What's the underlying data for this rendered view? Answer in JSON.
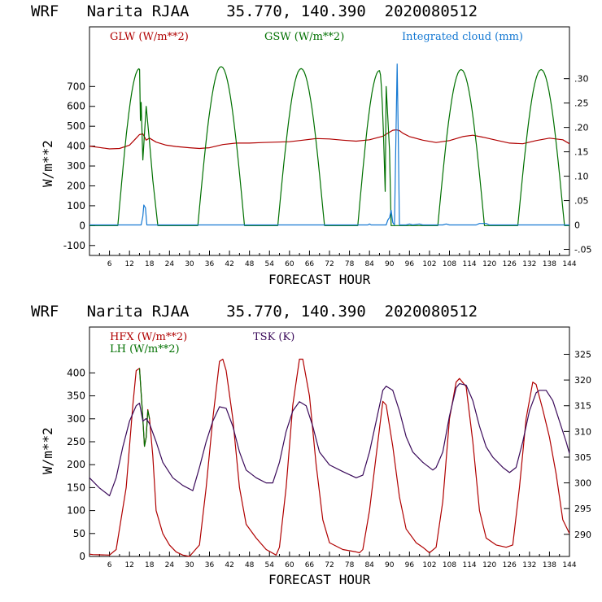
{
  "chart_data": [
    {
      "type": "line",
      "title": "WRF   Narita RJAA    35.770, 140.390  2020080512",
      "xlabel": "FORECAST HOUR",
      "ylabel": "W/m**2",
      "xlim": [
        0,
        144
      ],
      "ylim": [
        -150,
        1000
      ],
      "ylim_right": [
        -0.0625,
        0.40625
      ],
      "x_ticks": [
        6,
        12,
        18,
        24,
        30,
        36,
        42,
        48,
        54,
        60,
        66,
        72,
        78,
        84,
        90,
        96,
        102,
        108,
        114,
        120,
        126,
        132,
        138,
        144
      ],
      "y_ticks": [
        -100,
        0,
        100,
        200,
        300,
        400,
        500,
        600,
        700
      ],
      "y_ticks_right": [
        -0.05,
        0,
        0.05,
        0.1,
        0.15,
        0.2,
        0.25,
        0.3
      ],
      "y_tick_labels_right": [
        "-.05",
        "0",
        ".05",
        ".10",
        ".15",
        ".20",
        ".25",
        ".30"
      ],
      "series": [
        {
          "name": "GLW (W/m**2)",
          "color": "#b00000",
          "axis": "left",
          "points": [
            [
              0,
              400
            ],
            [
              3,
              393
            ],
            [
              6,
              386
            ],
            [
              9,
              388
            ],
            [
              12,
              405
            ],
            [
              14,
              440
            ],
            [
              15,
              458
            ],
            [
              16,
              462
            ],
            [
              17,
              430
            ],
            [
              18,
              440
            ],
            [
              20,
              420
            ],
            [
              23,
              405
            ],
            [
              26,
              398
            ],
            [
              30,
              392
            ],
            [
              33,
              388
            ],
            [
              36,
              392
            ],
            [
              40,
              408
            ],
            [
              44,
              415
            ],
            [
              48,
              415
            ],
            [
              52,
              418
            ],
            [
              56,
              420
            ],
            [
              60,
              422
            ],
            [
              64,
              430
            ],
            [
              68,
              438
            ],
            [
              72,
              436
            ],
            [
              76,
              430
            ],
            [
              80,
              425
            ],
            [
              84,
              432
            ],
            [
              88,
              450
            ],
            [
              90,
              470
            ],
            [
              91,
              480
            ],
            [
              92,
              482
            ],
            [
              93,
              478
            ],
            [
              94,
              465
            ],
            [
              96,
              448
            ],
            [
              100,
              430
            ],
            [
              104,
              418
            ],
            [
              108,
              428
            ],
            [
              112,
              448
            ],
            [
              115,
              455
            ],
            [
              118,
              445
            ],
            [
              122,
              430
            ],
            [
              126,
              415
            ],
            [
              130,
              412
            ],
            [
              134,
              428
            ],
            [
              138,
              440
            ],
            [
              142,
              432
            ],
            [
              144,
              412
            ]
          ]
        },
        {
          "name": "GSW (W/m**2)",
          "color": "#007000",
          "axis": "left",
          "peaks": [
            {
              "start": 8.5,
              "end": 15.5,
              "peak_hour": 15,
              "peak": 790,
              "after": [
                [
                  15.5,
                  620
                ],
                [
                  16,
                  330
                ],
                [
                  17,
                  600
                ],
                [
                  18,
                  420
                ],
                [
                  19,
                  230
                ],
                [
                  20.5,
                  0
                ]
              ]
            },
            {
              "start": 32.5,
              "end": 46.5,
              "peak_hour": 39.5,
              "peak": 800
            },
            {
              "start": 56.5,
              "end": 70.5,
              "peak_hour": 63.5,
              "peak": 790
            },
            {
              "start": 80.5,
              "end": 89,
              "peak_hour": 87,
              "peak": 780,
              "after": [
                [
                  89,
                  700
                ],
                [
                  90,
                  380
                ],
                [
                  90.5,
                  0
                ]
              ]
            },
            {
              "start": 104.5,
              "end": 118.5,
              "peak_hour": 111.5,
              "peak": 785
            },
            {
              "start": 128.5,
              "end": 142.5,
              "peak_hour": 135.5,
              "peak": 785
            }
          ]
        },
        {
          "name": "Integrated cloud (mm)",
          "color": "#1478d2",
          "axis": "right",
          "points": [
            [
              0,
              0
            ],
            [
              15.5,
              0
            ],
            [
              16,
              0.018
            ],
            [
              16.3,
              0.041
            ],
            [
              16.8,
              0.035
            ],
            [
              17.2,
              0
            ],
            [
              83.5,
              0
            ],
            [
              84,
              0.002
            ],
            [
              84.5,
              0
            ],
            [
              89,
              0
            ],
            [
              89.5,
              0.01
            ],
            [
              90,
              0.015
            ],
            [
              90.5,
              0.03
            ],
            [
              91,
              0.005
            ],
            [
              91.5,
              0
            ],
            [
              92,
              0.2
            ],
            [
              92.3,
              0.33
            ],
            [
              92.6,
              0.2
            ],
            [
              93,
              0
            ],
            [
              95,
              0
            ],
            [
              96,
              0.002
            ],
            [
              97,
              0
            ],
            [
              99,
              0.002
            ],
            [
              100,
              0
            ],
            [
              106,
              0
            ],
            [
              107,
              0.002
            ],
            [
              108,
              0
            ],
            [
              116,
              0
            ],
            [
              117,
              0.003
            ],
            [
              119,
              0.003
            ],
            [
              120,
              0
            ],
            [
              144,
              0
            ]
          ]
        }
      ]
    },
    {
      "type": "line",
      "title": "WRF   Narita RJAA    35.770, 140.390  2020080512",
      "xlabel": "FORECAST HOUR",
      "ylabel": "W/m**2",
      "xlim": [
        0,
        144
      ],
      "ylim": [
        0,
        500
      ],
      "ylim_right": [
        285.7,
        330.3
      ],
      "x_ticks": [
        6,
        12,
        18,
        24,
        30,
        36,
        42,
        48,
        54,
        60,
        66,
        72,
        78,
        84,
        90,
        96,
        102,
        108,
        114,
        120,
        126,
        132,
        138,
        144
      ],
      "y_ticks": [
        0,
        50,
        100,
        150,
        200,
        250,
        300,
        350,
        400
      ],
      "y_ticks_right": [
        290,
        295,
        300,
        305,
        310,
        315,
        320,
        325
      ],
      "series": [
        {
          "name": "HFX (W/m**2)",
          "color": "#b00000",
          "axis": "left",
          "points": [
            [
              0,
              5
            ],
            [
              1,
              4
            ],
            [
              6,
              3
            ],
            [
              8,
              15
            ],
            [
              11,
              150
            ],
            [
              13,
              330
            ],
            [
              14,
              405
            ],
            [
              15,
              410
            ],
            [
              16,
              300
            ],
            [
              16.5,
              240
            ],
            [
              17,
              260
            ],
            [
              17.5,
              320
            ],
            [
              18,
              300
            ],
            [
              19,
              220
            ],
            [
              20,
              100
            ],
            [
              22,
              50
            ],
            [
              24,
              25
            ],
            [
              26,
              10
            ],
            [
              28,
              3
            ],
            [
              30,
              0
            ],
            [
              33,
              25
            ],
            [
              35,
              150
            ],
            [
              37,
              300
            ],
            [
              39,
              425
            ],
            [
              40,
              430
            ],
            [
              41,
              405
            ],
            [
              43,
              300
            ],
            [
              45,
              150
            ],
            [
              47,
              70
            ],
            [
              50,
              40
            ],
            [
              53,
              15
            ],
            [
              56,
              3
            ],
            [
              57,
              20
            ],
            [
              59,
              150
            ],
            [
              61,
              330
            ],
            [
              63,
              430
            ],
            [
              64,
              430
            ],
            [
              66,
              350
            ],
            [
              68,
              200
            ],
            [
              70,
              80
            ],
            [
              72,
              30
            ],
            [
              76,
              15
            ],
            [
              80,
              10
            ],
            [
              81,
              8
            ],
            [
              82,
              15
            ],
            [
              84,
              100
            ],
            [
              86,
              220
            ],
            [
              88,
              338
            ],
            [
              89,
              330
            ],
            [
              91,
              240
            ],
            [
              93,
              130
            ],
            [
              95,
              60
            ],
            [
              98,
              30
            ],
            [
              100,
              20
            ],
            [
              102,
              8
            ],
            [
              104,
              20
            ],
            [
              106,
              120
            ],
            [
              108,
              300
            ],
            [
              110,
              380
            ],
            [
              111,
              388
            ],
            [
              113,
              370
            ],
            [
              115,
              250
            ],
            [
              117,
              100
            ],
            [
              119,
              40
            ],
            [
              122,
              25
            ],
            [
              125,
              20
            ],
            [
              127,
              25
            ],
            [
              129,
              150
            ],
            [
              131,
              300
            ],
            [
              133,
              380
            ],
            [
              134,
              375
            ],
            [
              136,
              320
            ],
            [
              138,
              260
            ],
            [
              140,
              180
            ],
            [
              142,
              80
            ],
            [
              144,
              50
            ]
          ]
        },
        {
          "name": "LH  (W/m**2)",
          "color": "#007000",
          "axis": "left",
          "points": [
            [
              15,
              410
            ],
            [
              16,
              300
            ],
            [
              16.5,
              240
            ],
            [
              17,
              260
            ],
            [
              17.5,
              318
            ],
            [
              18,
              300
            ]
          ]
        },
        {
          "name": "TSK (K)",
          "color": "#3a0a5a",
          "axis": "right",
          "points": [
            [
              0,
              301
            ],
            [
              3,
              299
            ],
            [
              6,
              297.5
            ],
            [
              8,
              301
            ],
            [
              10,
              307
            ],
            [
              12,
              312
            ],
            [
              14,
              315
            ],
            [
              15,
              315.5
            ],
            [
              16,
              312
            ],
            [
              17,
              312.5
            ],
            [
              18,
              311.5
            ],
            [
              20,
              308
            ],
            [
              22,
              304
            ],
            [
              25,
              301
            ],
            [
              28,
              299.5
            ],
            [
              31,
              298.5
            ],
            [
              33,
              303
            ],
            [
              35,
              308
            ],
            [
              37,
              312
            ],
            [
              39,
              314.8
            ],
            [
              41,
              314.5
            ],
            [
              43,
              311
            ],
            [
              45,
              306
            ],
            [
              47,
              302.5
            ],
            [
              50,
              301
            ],
            [
              53,
              300
            ],
            [
              55,
              300
            ],
            [
              57,
              304
            ],
            [
              59,
              310
            ],
            [
              61,
              314
            ],
            [
              63,
              315.8
            ],
            [
              65,
              315
            ],
            [
              67,
              311
            ],
            [
              69,
              306
            ],
            [
              72,
              303.5
            ],
            [
              76,
              302.2
            ],
            [
              80,
              301
            ],
            [
              82,
              301.5
            ],
            [
              84,
              306
            ],
            [
              86,
              312
            ],
            [
              88,
              318
            ],
            [
              89,
              318.8
            ],
            [
              91,
              318
            ],
            [
              93,
              314
            ],
            [
              95,
              309
            ],
            [
              97,
              306
            ],
            [
              100,
              304
            ],
            [
              103,
              302.5
            ],
            [
              104,
              303
            ],
            [
              106,
              306
            ],
            [
              108,
              313
            ],
            [
              110,
              318.5
            ],
            [
              111,
              319.3
            ],
            [
              113,
              319
            ],
            [
              115,
              316
            ],
            [
              117,
              311
            ],
            [
              119,
              307
            ],
            [
              121,
              305
            ],
            [
              124,
              303
            ],
            [
              126,
              302
            ],
            [
              128,
              303
            ],
            [
              130,
              308
            ],
            [
              132,
              314
            ],
            [
              134,
              317.5
            ],
            [
              135,
              318
            ],
            [
              137,
              318
            ],
            [
              139,
              316
            ],
            [
              141,
              312
            ],
            [
              143,
              308
            ],
            [
              144,
              305.7
            ]
          ]
        }
      ]
    }
  ]
}
